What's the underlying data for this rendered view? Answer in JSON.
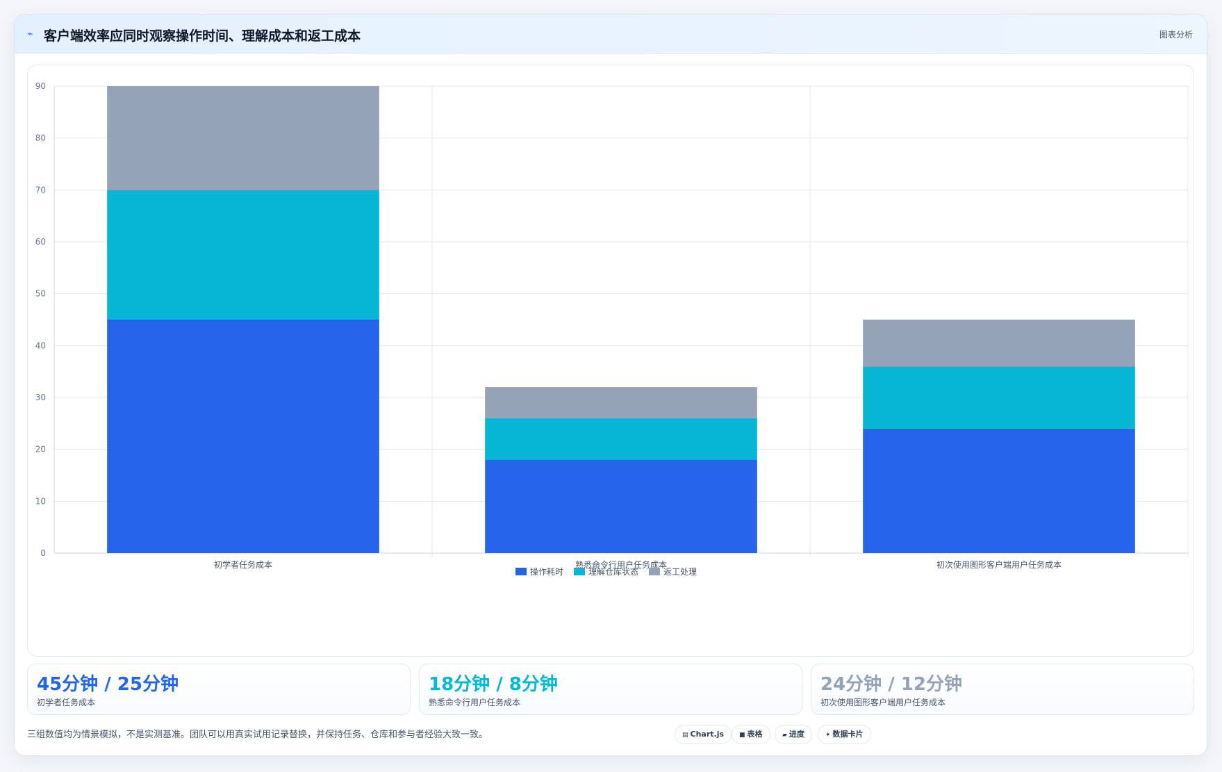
{
  "header": {
    "title": "客户端效率应同时观察操作时间、理解成本和返工成本",
    "tag": "图表分析",
    "icon": "line-chart-icon"
  },
  "chart_data": {
    "type": "bar",
    "stacked": true,
    "categories": [
      "初学者任务成本",
      "熟悉命令行用户任务成本",
      "初次使用图形客户端用户任务成本"
    ],
    "series": [
      {
        "name": "操作耗时",
        "color": "#2563eb",
        "values": [
          45,
          18,
          24
        ]
      },
      {
        "name": "理解仓库状态",
        "color": "#06b6d4",
        "values": [
          25,
          8,
          12
        ]
      },
      {
        "name": "返工处理",
        "color": "#94a3b8",
        "values": [
          20,
          6,
          9
        ]
      }
    ],
    "ylim": [
      0,
      90
    ],
    "yticks": [
      0,
      10,
      20,
      30,
      40,
      50,
      60,
      70,
      80,
      90
    ],
    "grid": true,
    "legend": "bottom"
  },
  "stats": [
    {
      "value": "45分钟 / 25分钟",
      "label": "初学者任务成本",
      "color": "#2563eb"
    },
    {
      "value": "18分钟 / 8分钟",
      "label": "熟悉命令行用户任务成本",
      "color": "#06b6d4"
    },
    {
      "value": "24分钟 / 12分钟",
      "label": "初次使用图形客户端用户任务成本",
      "color": "#94a3b8"
    }
  ],
  "footnote": "三组数值均为情景模拟，不是实测基准。团队可以用真实试用记录替换，并保持任务、仓库和参与者经验大致一致。",
  "chips": [
    {
      "icon": "▤",
      "label": "Chart.js"
    },
    {
      "icon": "■",
      "label": "表格"
    },
    {
      "icon": "▰",
      "label": "进度"
    },
    {
      "icon": "✦",
      "label": "数据卡片"
    }
  ]
}
